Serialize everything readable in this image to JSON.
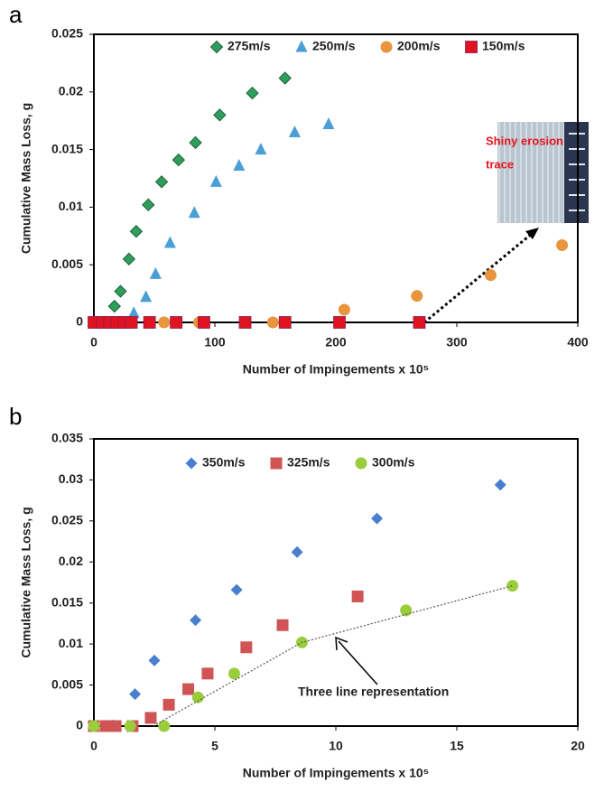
{
  "chart_data": [
    {
      "type": "scatter",
      "panel": "a",
      "xlabel": "Number of Impingements x 10⁵",
      "ylabel": "Cumulative Mass Loss, g",
      "xlim": [
        0,
        400
      ],
      "xticks": [
        0,
        100,
        200,
        300,
        400
      ],
      "ylim": [
        0,
        0.025
      ],
      "yticks": [
        0,
        0.005,
        0.01,
        0.015,
        0.02,
        0.025
      ],
      "legend": "top",
      "series": [
        {
          "name": "275m/s",
          "color": "#2e9e5a",
          "marker": "diamond",
          "x": [
            0,
            7,
            17,
            22,
            29,
            35,
            45,
            56,
            70,
            84,
            104,
            131,
            158
          ],
          "values": [
            0,
            0,
            0.0014,
            0.0027,
            0.0055,
            0.0079,
            0.0102,
            0.0122,
            0.0141,
            0.0156,
            0.018,
            0.0199,
            0.0212
          ]
        },
        {
          "name": "250m/s",
          "color": "#4a9fd6",
          "marker": "triangle",
          "x": [
            0,
            10,
            20,
            33,
            43,
            51,
            63,
            83,
            101,
            120,
            138,
            166,
            194
          ],
          "values": [
            0,
            0,
            0,
            0.0008,
            0.0022,
            0.0042,
            0.0069,
            0.0095,
            0.0122,
            0.0136,
            0.015,
            0.0165,
            0.0172
          ]
        },
        {
          "name": "200m/s",
          "color": "#e8953e",
          "marker": "circle",
          "x": [
            0,
            29,
            58,
            87,
            148,
            207,
            267,
            328,
            387
          ],
          "values": [
            0,
            0,
            0,
            0,
            0,
            0.0011,
            0.0023,
            0.0041,
            0.0067
          ]
        },
        {
          "name": "150m/s",
          "color": "#e0141e",
          "marker": "square",
          "x": [
            0,
            7,
            13,
            19,
            25,
            31,
            46,
            68,
            91,
            125,
            158,
            203,
            269
          ],
          "values": [
            0,
            0,
            0,
            0,
            0,
            0,
            0,
            0,
            0,
            0,
            0,
            0,
            0
          ]
        }
      ],
      "annotations": [
        {
          "text": "Shiny erosion"
        },
        {
          "text": "trace"
        }
      ]
    },
    {
      "type": "scatter",
      "panel": "b",
      "xlabel": "Number of Impingements x 10⁵",
      "ylabel": "Cumulative Mass Loss, g",
      "xlim": [
        0,
        20
      ],
      "xticks": [
        0,
        5,
        10,
        15,
        20
      ],
      "ylim": [
        0,
        0.035
      ],
      "yticks": [
        0,
        0.005,
        0.01,
        0.015,
        0.02,
        0.025,
        0.03,
        0.035
      ],
      "legend": "top",
      "series": [
        {
          "name": "350m/s",
          "color": "#4a7fd0",
          "marker": "diamond",
          "x": [
            0,
            0.8,
            1.7,
            2.5,
            4.2,
            5.9,
            8.4,
            11.7,
            16.8
          ],
          "values": [
            0,
            0.0001,
            0.0039,
            0.008,
            0.0129,
            0.0166,
            0.0212,
            0.0253,
            0.0294
          ]
        },
        {
          "name": "325m/s",
          "color": "#d05454",
          "marker": "square",
          "x": [
            0,
            0.5,
            0.9,
            1.6,
            2.35,
            3.1,
            3.9,
            4.7,
            6.3,
            7.8,
            10.9
          ],
          "values": [
            0,
            0,
            0,
            0,
            0.001,
            0.0026,
            0.0045,
            0.0064,
            0.0096,
            0.0123,
            0.0158
          ]
        },
        {
          "name": "300m/s",
          "color": "#9acd3c",
          "marker": "circle",
          "x": [
            0,
            1.5,
            2.9,
            4.3,
            5.8,
            8.6,
            12.9,
            17.3
          ],
          "values": [
            0,
            0,
            0,
            0.0035,
            0.0064,
            0.0102,
            0.0141,
            0.0171
          ]
        },
        {
          "color": "#555555",
          "marker": "line",
          "x": [
            2.45,
            8.6,
            17.3
          ],
          "values": [
            0,
            0.0102,
            0.0171
          ]
        }
      ],
      "annotations": [
        {
          "text": "Three line representation"
        }
      ]
    }
  ]
}
